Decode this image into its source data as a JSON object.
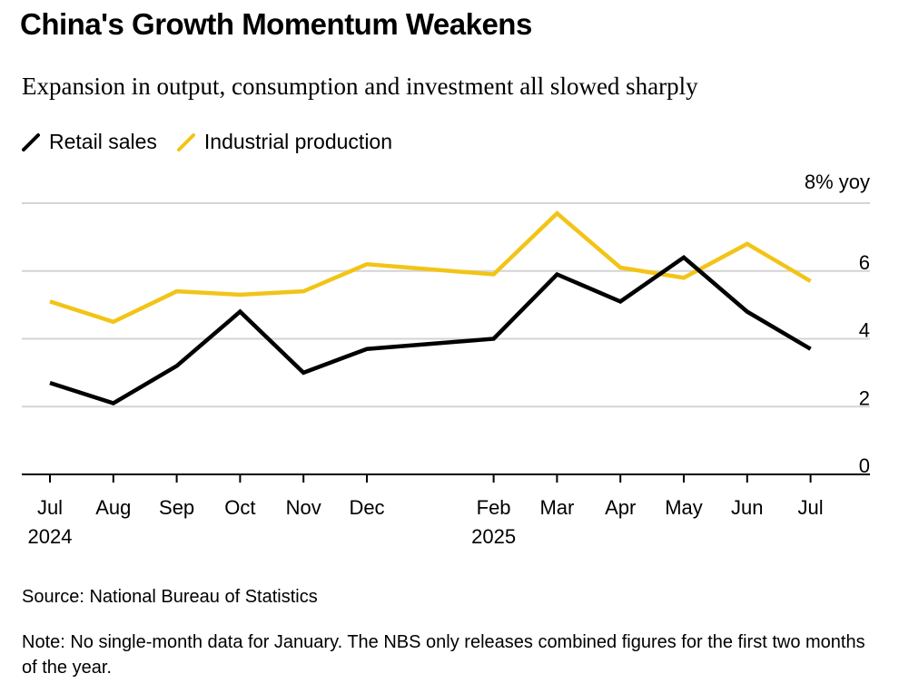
{
  "header": {
    "title": "China's Growth Momentum Weakens",
    "subtitle": "Expansion in output, consumption and investment all slowed sharply"
  },
  "chart_data": {
    "type": "line",
    "title": "China's Growth Momentum Weakens",
    "subtitle": "Expansion in output, consumption and investment all slowed sharply",
    "ylabel": "8% yoy",
    "y_unit_label": "8% yoy",
    "ylim": [
      0,
      8
    ],
    "yticks": [
      0,
      2,
      4,
      6
    ],
    "grid": true,
    "legend_position": "top-left",
    "x": [
      "2024-07",
      "2024-08",
      "2024-09",
      "2024-10",
      "2024-11",
      "2024-12",
      "2025-02",
      "2025-03",
      "2025-04",
      "2025-05",
      "2025-06",
      "2025-07"
    ],
    "x_positions_month_index": [
      0,
      1,
      2,
      3,
      4,
      5,
      7,
      8,
      9,
      10,
      11,
      12
    ],
    "x_tick_labels": [
      "Jul",
      "Aug",
      "Sep",
      "Oct",
      "Nov",
      "Dec",
      "Feb",
      "Mar",
      "Apr",
      "May",
      "Jun",
      "Jul"
    ],
    "x_year_labels": [
      {
        "month_index": 0,
        "label": "2024"
      },
      {
        "month_index": 7,
        "label": "2025"
      }
    ],
    "series": [
      {
        "name": "Retail sales",
        "color": "#000000",
        "values": [
          2.7,
          2.1,
          3.2,
          4.8,
          3.0,
          3.7,
          4.0,
          5.9,
          5.1,
          6.4,
          4.8,
          3.7
        ]
      },
      {
        "name": "Industrial production",
        "color": "#f2c416",
        "values": [
          5.1,
          4.5,
          5.4,
          5.3,
          5.4,
          6.2,
          5.9,
          7.7,
          6.1,
          5.8,
          6.8,
          5.7
        ]
      }
    ]
  },
  "footer": {
    "source": "Source: National Bureau of Statistics",
    "note": "Note: No single-month data for January. The NBS only releases combined figures for the first two months of the year."
  }
}
